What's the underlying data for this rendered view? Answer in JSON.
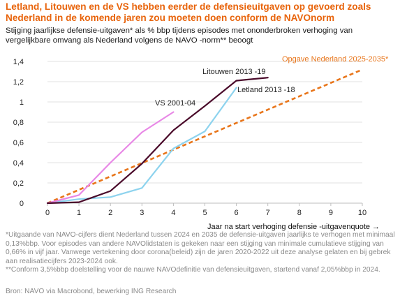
{
  "header": {
    "title": "Letland, Litouwen en de VS hebben eerder de defensieuitgaven op gevoerd zoals Nederland in de komende jaren zou moeten doen conform de NAVOnorm",
    "subtitle": "Stijging jaarlijkse defensie-uitgaven* als % bbp tijdens  episodes met ononderbroken verhoging van vergelijkbare omvang als Nederland volgens de NAVO -norm** beoogt"
  },
  "chart_data": {
    "type": "line",
    "xlabel": "Jaar na start verhoging defensie -uitgavenquote →",
    "ylabel": "",
    "x_ticks": [
      "0",
      "1",
      "2",
      "3",
      "4",
      "5",
      "6",
      "7",
      "8",
      "9",
      "10"
    ],
    "y_ticks": [
      "0",
      "0,2",
      "0,4",
      "0,6",
      "0,8",
      "1",
      "1,2",
      "1,4"
    ],
    "xlim": [
      0,
      10
    ],
    "ylim": [
      0,
      1.4
    ],
    "grid": "horizontal",
    "series": [
      {
        "name": "VS 2001-04",
        "color": "#e888e6",
        "dashed": false,
        "x": [
          0,
          1,
          2,
          3,
          4
        ],
        "y": [
          0,
          0.08,
          0.4,
          0.7,
          0.9
        ]
      },
      {
        "name": "Litouwen 2013 -19",
        "color": "#4a0a2a",
        "dashed": false,
        "x": [
          0,
          1,
          2,
          3,
          4,
          5,
          6,
          7
        ],
        "y": [
          0,
          0.01,
          0.12,
          0.39,
          0.72,
          0.96,
          1.21,
          1.24
        ]
      },
      {
        "name": "Letland 2013 -18",
        "color": "#8dd3ee",
        "dashed": false,
        "x": [
          0,
          1,
          2,
          3,
          4,
          5,
          6
        ],
        "y": [
          0,
          0.04,
          0.06,
          0.15,
          0.54,
          0.71,
          1.14
        ]
      },
      {
        "name": "Opgave Nederland 2025-2035*",
        "color": "#e8751a",
        "dashed": true,
        "x": [
          0,
          10
        ],
        "y": [
          0,
          1.32
        ]
      }
    ]
  },
  "footnotes": [
    "*Uitgaande van NAVO-cijfers dient Nederland tussen 2024 en 2035 de defensie-uitgaven jaarlijks te verhogen met minimaal 0,13%bbp. Voor episodes van andere NAVOlidstaten is gekeken naar een stijging van minimale cumulatieve stijging van 0,66% in vijf jaar. Vanwege vertekening door corona(beleid) zijn de jaren 2020-2022 uit deze analyse gelaten en bij gebrek aan realisatiecijfers 2023-2024 ook.",
    "**Conform 3,5%bbp doelstelling voor de nauwe NAVOdefinitie van defensieuitgaven, startend vanaf 2,05%bbp in 2024."
  ],
  "source": "Bron: NAVO via Macrobond, bewerking ING Research"
}
